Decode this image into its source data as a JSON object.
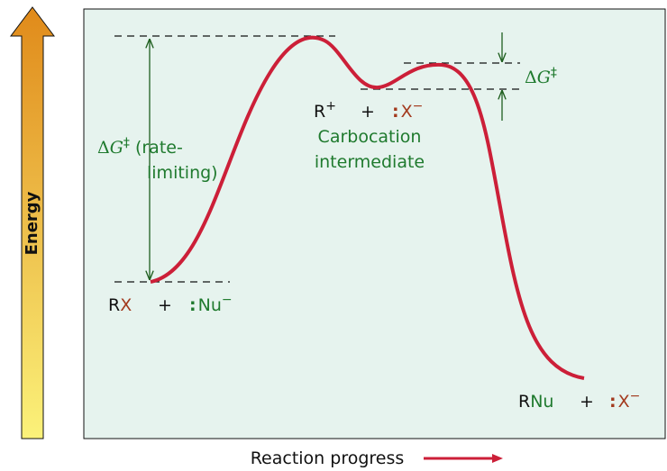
{
  "y_axis_label": "Energy",
  "x_axis_label": "Reaction progress",
  "barrier_1": {
    "delta": "Δ",
    "g": "G",
    "dagger": "‡",
    "lines": [
      " (rate-",
      "limiting)"
    ]
  },
  "barrier_2": {
    "delta": "Δ",
    "g": "G",
    "dagger": "‡"
  },
  "intermediate": {
    "species": [
      "R",
      "+",
      "+",
      ":",
      "X",
      "−"
    ],
    "label": [
      "Carbocation",
      "intermediate"
    ]
  },
  "reactants": [
    "R",
    "X",
    "+",
    ":",
    "Nu",
    "−"
  ],
  "products": [
    "R",
    "Nu",
    "+",
    ":",
    "X",
    "−"
  ]
}
